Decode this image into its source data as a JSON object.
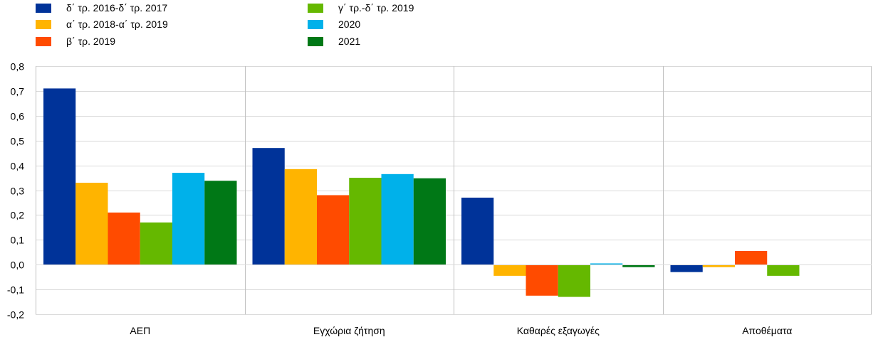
{
  "chart_data": {
    "type": "bar",
    "categories": [
      "ΑΕΠ",
      "Εγχώρια ζήτηση",
      "Καθαρές εξαγωγές",
      "Αποθέματα"
    ],
    "series": [
      {
        "name": "δ΄ τρ. 2016-δ΄ τρ. 2017",
        "color": "#003399",
        "values": [
          0.71,
          0.47,
          0.27,
          -0.03
        ]
      },
      {
        "name": "α΄ τρ. 2018-α΄ τρ. 2019",
        "color": "#FFB400",
        "values": [
          0.33,
          0.385,
          -0.045,
          -0.01
        ]
      },
      {
        "name": "β΄ τρ. 2019",
        "color": "#FF4B00",
        "values": [
          0.21,
          0.28,
          -0.125,
          0.055
        ]
      },
      {
        "name": "γ΄ τρ.-δ΄ τρ. 2019",
        "color": "#65B800",
        "values": [
          0.17,
          0.35,
          -0.13,
          -0.045
        ]
      },
      {
        "name": "2020",
        "color": "#00B1EA",
        "values": [
          0.37,
          0.365,
          0.005,
          0.0
        ]
      },
      {
        "name": "2021",
        "color": "#007816",
        "values": [
          0.338,
          0.348,
          -0.01,
          0.0
        ]
      }
    ],
    "ylim": [
      -0.2,
      0.8
    ],
    "yticks": [
      "-0,2",
      "-0,1",
      "0,0",
      "0,1",
      "0,2",
      "0,3",
      "0,4",
      "0,5",
      "0,6",
      "0,7",
      "0,8"
    ],
    "ytick_values": [
      -0.2,
      -0.1,
      0.0,
      0.1,
      0.2,
      0.3,
      0.4,
      0.5,
      0.6,
      0.7,
      0.8
    ],
    "grid": true,
    "legend_position": "top-left"
  }
}
